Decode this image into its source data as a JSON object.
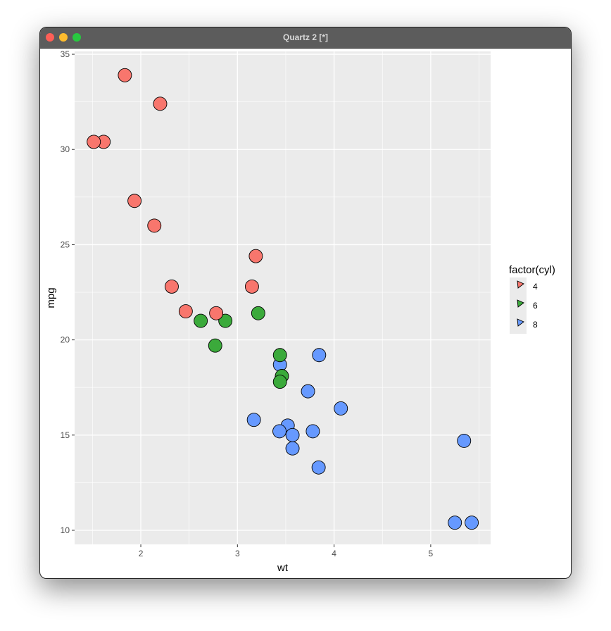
{
  "window": {
    "title": "Quartz 2 [*]",
    "buttons": [
      {
        "name": "close",
        "color": "#fe5f57"
      },
      {
        "name": "minimize",
        "color": "#febc2e"
      },
      {
        "name": "zoom",
        "color": "#28c840"
      }
    ]
  },
  "chart_data": {
    "type": "scatter",
    "title": "",
    "xlabel": "wt",
    "ylabel": "mpg",
    "xlim": [
      1.315,
      5.62
    ],
    "ylim": [
      9.26,
      35.15
    ],
    "xticks": [
      "2",
      "3",
      "4",
      "5"
    ],
    "yticks": [
      "10",
      "15",
      "20",
      "25",
      "30",
      "35"
    ],
    "grid": true,
    "legend": {
      "title": "factor(cyl)",
      "placement": "right",
      "entries": [
        {
          "label": "4",
          "color": "#F8766D"
        },
        {
          "label": "6",
          "color": "#3BAA3B"
        },
        {
          "label": "8",
          "color": "#6699FF"
        }
      ]
    },
    "points": [
      {
        "wt": 2.62,
        "mpg": 21.0,
        "cyl": "6"
      },
      {
        "wt": 2.875,
        "mpg": 21.0,
        "cyl": "6"
      },
      {
        "wt": 2.32,
        "mpg": 22.8,
        "cyl": "4"
      },
      {
        "wt": 3.215,
        "mpg": 21.4,
        "cyl": "6"
      },
      {
        "wt": 3.44,
        "mpg": 18.7,
        "cyl": "8"
      },
      {
        "wt": 3.46,
        "mpg": 18.1,
        "cyl": "6"
      },
      {
        "wt": 3.57,
        "mpg": 14.3,
        "cyl": "8"
      },
      {
        "wt": 3.19,
        "mpg": 24.4,
        "cyl": "4"
      },
      {
        "wt": 3.15,
        "mpg": 22.8,
        "cyl": "4"
      },
      {
        "wt": 3.44,
        "mpg": 19.2,
        "cyl": "6"
      },
      {
        "wt": 3.44,
        "mpg": 17.8,
        "cyl": "6"
      },
      {
        "wt": 4.07,
        "mpg": 16.4,
        "cyl": "8"
      },
      {
        "wt": 3.73,
        "mpg": 17.3,
        "cyl": "8"
      },
      {
        "wt": 3.78,
        "mpg": 15.2,
        "cyl": "8"
      },
      {
        "wt": 5.25,
        "mpg": 10.4,
        "cyl": "8"
      },
      {
        "wt": 5.424,
        "mpg": 10.4,
        "cyl": "8"
      },
      {
        "wt": 5.345,
        "mpg": 14.7,
        "cyl": "8"
      },
      {
        "wt": 2.2,
        "mpg": 32.4,
        "cyl": "4"
      },
      {
        "wt": 1.615,
        "mpg": 30.4,
        "cyl": "4"
      },
      {
        "wt": 1.835,
        "mpg": 33.9,
        "cyl": "4"
      },
      {
        "wt": 2.465,
        "mpg": 21.5,
        "cyl": "4"
      },
      {
        "wt": 3.52,
        "mpg": 15.5,
        "cyl": "8"
      },
      {
        "wt": 3.435,
        "mpg": 15.2,
        "cyl": "8"
      },
      {
        "wt": 3.84,
        "mpg": 13.3,
        "cyl": "8"
      },
      {
        "wt": 3.845,
        "mpg": 19.2,
        "cyl": "8"
      },
      {
        "wt": 1.935,
        "mpg": 27.3,
        "cyl": "4"
      },
      {
        "wt": 2.14,
        "mpg": 26.0,
        "cyl": "4"
      },
      {
        "wt": 1.513,
        "mpg": 30.4,
        "cyl": "4"
      },
      {
        "wt": 3.17,
        "mpg": 15.8,
        "cyl": "8"
      },
      {
        "wt": 2.77,
        "mpg": 19.7,
        "cyl": "6"
      },
      {
        "wt": 3.57,
        "mpg": 15.0,
        "cyl": "8"
      },
      {
        "wt": 2.78,
        "mpg": 21.4,
        "cyl": "4"
      }
    ]
  }
}
